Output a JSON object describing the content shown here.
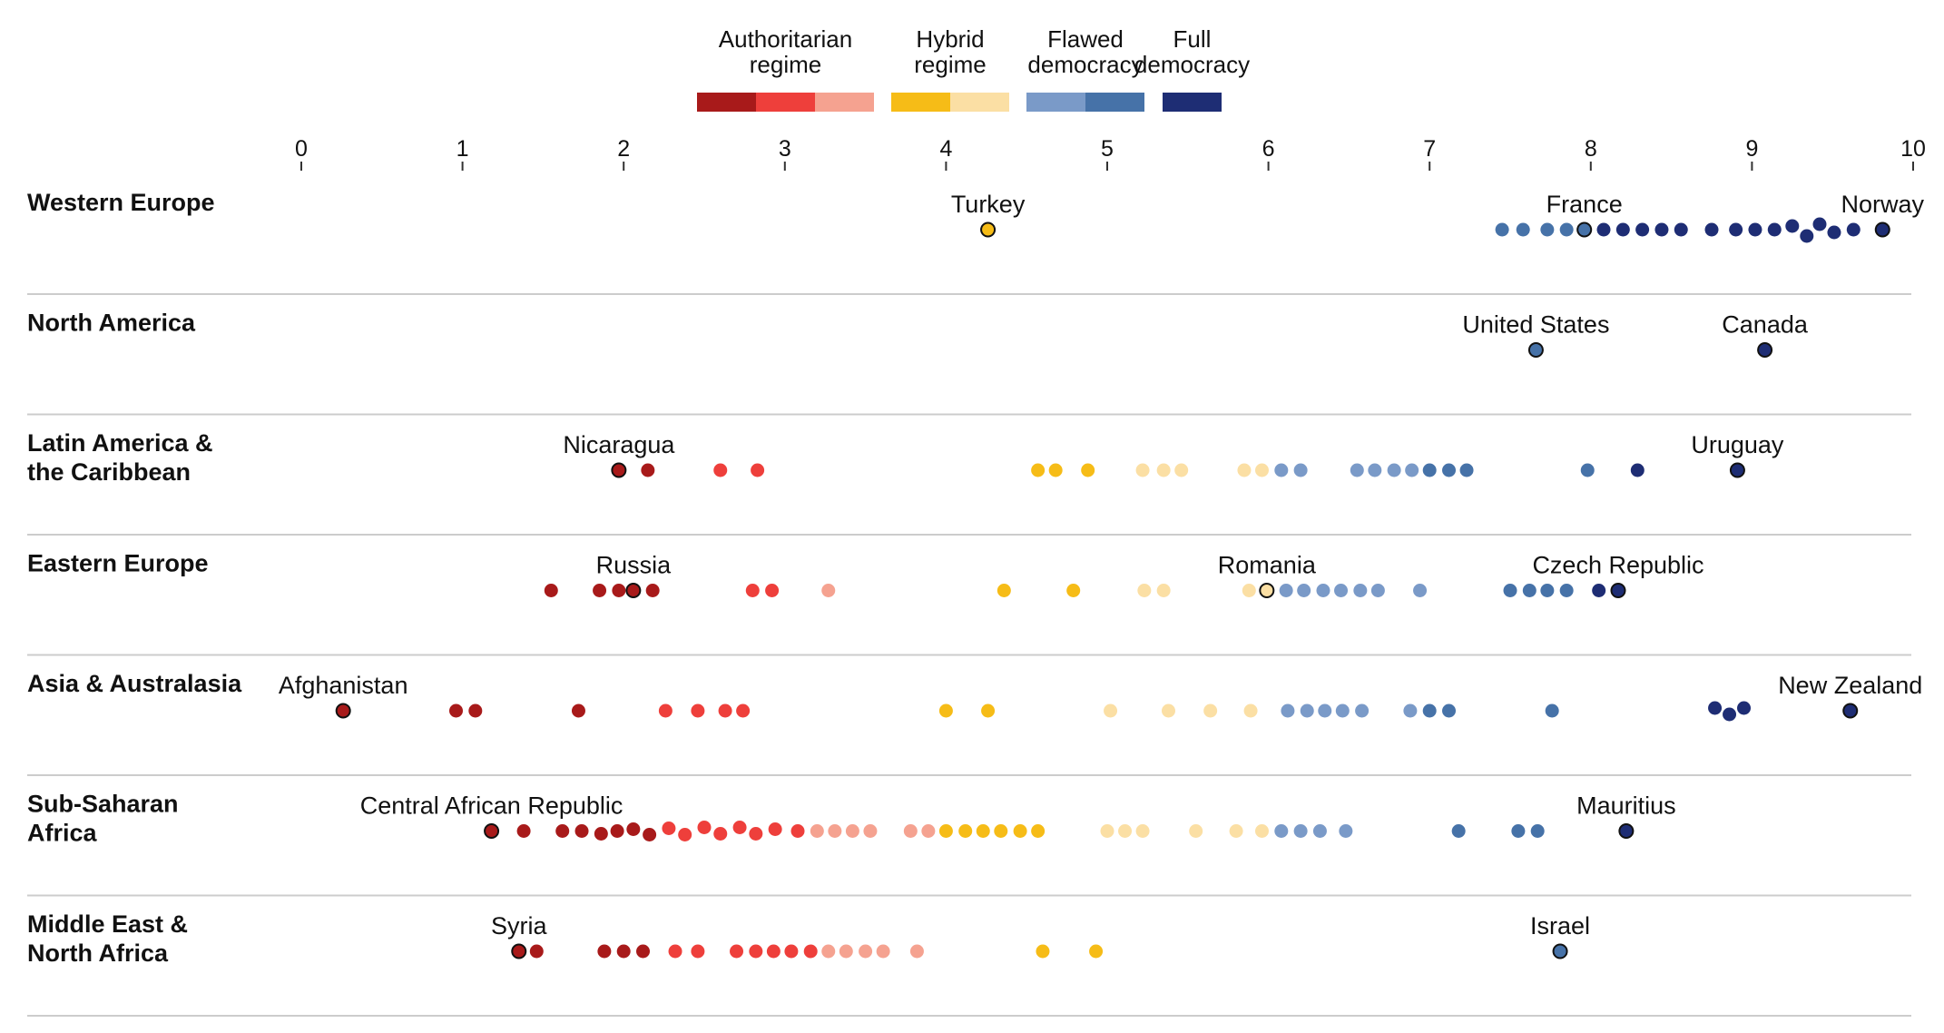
{
  "chart_data": {
    "type": "scatter",
    "subtype": "dot-strip",
    "x_axis": {
      "range": [
        0,
        10
      ],
      "ticks": [
        0,
        1,
        2,
        3,
        4,
        5,
        6,
        7,
        8,
        9,
        10
      ]
    },
    "legend": {
      "placement": "top-center",
      "items": [
        {
          "label_lines": [
            "Authoritarian",
            "regime"
          ],
          "swatches": [
            "#a81a1a",
            "#ee3f3b",
            "#f5a290"
          ]
        },
        {
          "label_lines": [
            "Hybrid",
            "regime"
          ],
          "swatches": [
            "#f6bc17",
            "#fbdfa4"
          ]
        },
        {
          "label_lines": [
            "Flawed",
            "democracy"
          ],
          "swatches": [
            "#7a9ac8",
            "#4672a8"
          ]
        },
        {
          "label_lines": [
            "Full",
            "democracy"
          ],
          "swatches": [
            "#1e2d74"
          ]
        }
      ]
    },
    "category_colors": {
      "auth1": "#a81a1a",
      "auth2": "#ee3f3b",
      "auth3": "#f5a290",
      "hyb1": "#f6bc17",
      "hyb2": "#fbdfa4",
      "flaw1": "#7a9ac8",
      "flaw2": "#4672a8",
      "full": "#1e2d74"
    },
    "thresholds": [
      {
        "max": 2.2,
        "cat": "auth1"
      },
      {
        "max": 3.2,
        "cat": "auth2"
      },
      {
        "max": 4.0,
        "cat": "auth3"
      },
      {
        "max": 5.0,
        "cat": "hyb1"
      },
      {
        "max": 6.0,
        "cat": "hyb2"
      },
      {
        "max": 7.0,
        "cat": "flaw1"
      },
      {
        "max": 8.0,
        "cat": "flaw2"
      },
      {
        "max": 10.0,
        "cat": "full"
      }
    ],
    "regions": [
      {
        "name_lines": [
          "Western Europe"
        ],
        "scores": [
          7.45,
          7.58,
          7.73,
          7.85,
          8.08,
          8.2,
          8.32,
          8.44,
          8.56,
          8.75,
          8.9,
          9.02,
          9.14,
          [
            9.25,
            -4
          ],
          [
            9.34,
            7
          ],
          [
            9.42,
            -6
          ],
          [
            9.51,
            3
          ],
          [
            9.63,
            0
          ]
        ],
        "labeled": [
          {
            "name": "Turkey",
            "score": 4.26
          },
          {
            "name": "France",
            "score": 7.96
          },
          {
            "name": "Norway",
            "score": 9.81
          }
        ]
      },
      {
        "name_lines": [
          "North America"
        ],
        "scores": [],
        "labeled": [
          {
            "name": "United States",
            "score": 7.66
          },
          {
            "name": "Canada",
            "score": 9.08
          }
        ]
      },
      {
        "name_lines": [
          "Latin America &",
          "the Caribbean"
        ],
        "scores": [
          2.15,
          2.6,
          2.83,
          4.57,
          4.68,
          4.88,
          5.22,
          5.35,
          5.46,
          5.85,
          5.96,
          6.08,
          6.2,
          6.55,
          6.66,
          6.78,
          6.89,
          7.0,
          7.12,
          7.23,
          7.98,
          8.29
        ],
        "labeled": [
          {
            "name": "Nicaragua",
            "score": 1.97
          },
          {
            "name": "Uruguay",
            "score": 8.91
          }
        ]
      },
      {
        "name_lines": [
          "Eastern Europe"
        ],
        "scores": [
          1.55,
          1.85,
          1.97,
          2.18,
          2.8,
          2.92,
          3.27,
          4.36,
          4.79,
          5.23,
          5.35,
          5.88,
          6.11,
          6.22,
          6.34,
          6.45,
          6.57,
          6.68,
          6.94,
          7.5,
          7.62,
          7.73,
          7.85,
          8.05
        ],
        "labeled": [
          {
            "name": "Russia",
            "score": 2.06
          },
          {
            "name": "Romania",
            "score": 5.99
          },
          {
            "name": "Czech Republic",
            "score": 8.17
          }
        ]
      },
      {
        "name_lines": [
          "Asia & Australasia"
        ],
        "scores": [
          0.96,
          1.08,
          1.72,
          2.26,
          2.46,
          2.63,
          2.74,
          4.0,
          4.26,
          5.02,
          5.38,
          5.64,
          5.89,
          6.12,
          6.24,
          6.35,
          6.46,
          6.58,
          6.88,
          7.0,
          7.12,
          7.76,
          [
            8.77,
            -3
          ],
          [
            8.86,
            4
          ],
          [
            8.95,
            -3
          ]
        ],
        "labeled": [
          {
            "name": "Afghanistan",
            "score": 0.26
          },
          {
            "name": "New Zealand",
            "score": 9.61
          }
        ]
      },
      {
        "name_lines": [
          "Sub-Saharan",
          "Africa"
        ],
        "scores": [
          1.38,
          1.62,
          1.74,
          [
            1.86,
            3
          ],
          1.96,
          [
            2.06,
            -2
          ],
          [
            2.16,
            4
          ],
          [
            2.28,
            -3
          ],
          [
            2.38,
            4
          ],
          [
            2.5,
            -4
          ],
          [
            2.6,
            3
          ],
          [
            2.72,
            -4
          ],
          [
            2.82,
            3
          ],
          [
            2.94,
            -2
          ],
          3.08,
          3.2,
          3.31,
          3.42,
          3.53,
          3.78,
          3.89,
          4.0,
          4.12,
          4.23,
          4.34,
          4.46,
          4.57,
          5.0,
          5.11,
          5.22,
          5.55,
          5.8,
          5.96,
          6.08,
          6.2,
          6.32,
          6.48,
          7.18,
          7.55,
          7.67
        ],
        "labeled": [
          {
            "name": "Central African Republic",
            "score": 1.18
          },
          {
            "name": "Mauritius",
            "score": 8.22
          }
        ]
      },
      {
        "name_lines": [
          "Middle East &",
          "North Africa"
        ],
        "scores": [
          1.46,
          1.88,
          2.0,
          2.12,
          2.32,
          2.46,
          2.7,
          2.82,
          2.93,
          3.04,
          3.16,
          3.27,
          3.38,
          3.5,
          3.61,
          3.82,
          4.6,
          4.93
        ],
        "labeled": [
          {
            "name": "Syria",
            "score": 1.35
          },
          {
            "name": "Israel",
            "score": 7.81
          }
        ]
      }
    ]
  }
}
